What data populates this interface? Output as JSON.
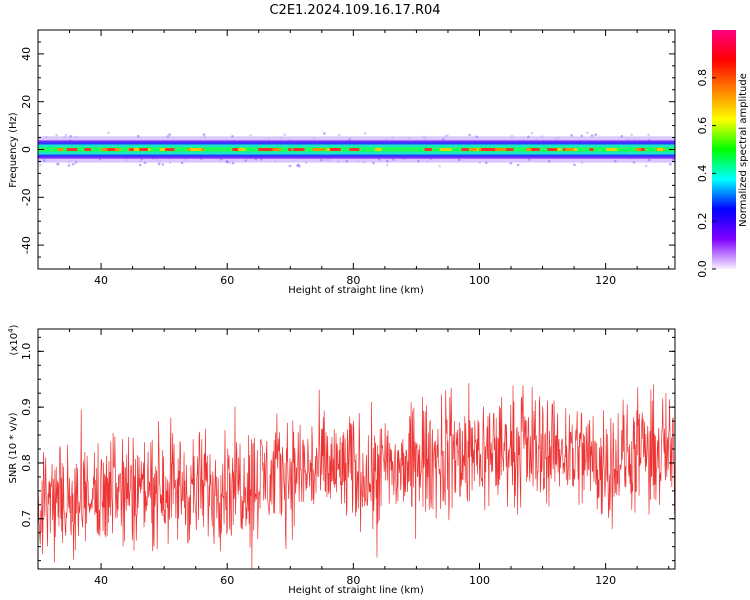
{
  "title": "C2E1.2024.109.16.17.R04",
  "chart_data": [
    {
      "type": "heatmap",
      "xlabel": "Height of straight line (km)",
      "ylabel": "Frequency (Hz)",
      "xlim": [
        30,
        131
      ],
      "ylim": [
        -50,
        50
      ],
      "xticks": [
        40,
        60,
        80,
        100,
        120
      ],
      "yticks": [
        -40,
        -20,
        0,
        20,
        40
      ],
      "band": {
        "frequency_center": 0,
        "core_halfwidth": 1.5,
        "mid_halfwidth": 3,
        "outer_halfwidth": 5.5
      },
      "colorbar": {
        "label": "Normalized spectral amplitude",
        "range": [
          0,
          1
        ],
        "ticks": [
          "0.0",
          "0.2",
          "0.4",
          "0.6",
          "0.8"
        ],
        "colors": [
          "#f7f0ff",
          "#8000ff",
          "#0000ff",
          "#00ffff",
          "#00ff00",
          "#ffff00",
          "#ff8000",
          "#ff0000",
          "#ff0080"
        ]
      }
    },
    {
      "type": "line",
      "xlabel": "Height of straight line (km)",
      "ylabel": "SNR (10 * v/v)",
      "scale_label": "(x10",
      "scale_exp": "4",
      "scale_close": ")",
      "xlim": [
        30,
        131
      ],
      "ylim": [
        0.61,
        1.04
      ],
      "xticks": [
        40,
        60,
        80,
        100,
        120
      ],
      "yticks": [
        "0.7",
        "0.8",
        "0.9",
        "1.0"
      ],
      "color": "#ee3333",
      "x": [
        30,
        35,
        40,
        45,
        50,
        55,
        60,
        65,
        70,
        75,
        80,
        85,
        90,
        95,
        100,
        105,
        110,
        115,
        120,
        125,
        131
      ],
      "y": [
        0.72,
        0.74,
        0.745,
        0.755,
        0.76,
        0.75,
        0.765,
        0.77,
        0.785,
        0.79,
        0.785,
        0.785,
        0.8,
        0.81,
        0.82,
        0.825,
        0.83,
        0.82,
        0.8,
        0.815,
        0.82
      ],
      "noise_amplitude": 0.05
    }
  ]
}
